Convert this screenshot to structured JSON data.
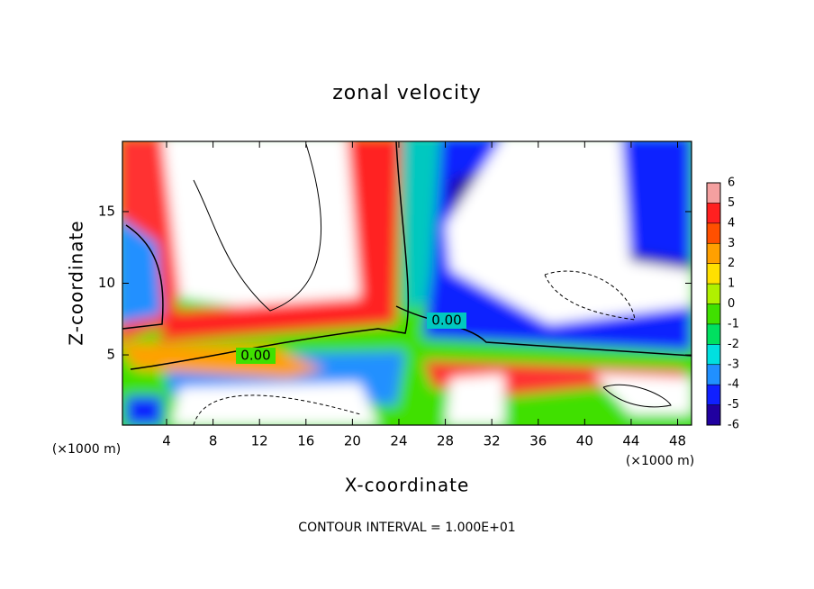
{
  "chart_data": {
    "type": "contour",
    "title": "zonal velocity",
    "x_label": "X-coordinate",
    "y_label": "Z-coordinate",
    "x_unit": "(×1000 m)",
    "y_unit": "(×1000 m)",
    "footnote": "CONTOUR INTERVAL = 1.000E+01",
    "contour_labels": [
      "0.00",
      "0.00"
    ],
    "xlim": [
      0.2,
      49.2
    ],
    "xticks": [
      4,
      8,
      12,
      16,
      20,
      24,
      28,
      32,
      36,
      40,
      44,
      48
    ],
    "ylim": [
      0.1,
      19.9
    ],
    "yticks": [
      5,
      10,
      15
    ],
    "colorbar": {
      "levels": [
        6,
        5,
        4,
        3,
        2,
        1,
        0,
        -1,
        -2,
        -3,
        -4,
        -5,
        -6
      ],
      "colors": [
        "#f4a0a0",
        "#ff2020",
        "#ff5000",
        "#ffa000",
        "#ffe000",
        "#b0f000",
        "#40e000",
        "#00e060",
        "#00e0e0",
        "#2090ff",
        "#1020ff",
        "#2000a0"
      ]
    }
  }
}
